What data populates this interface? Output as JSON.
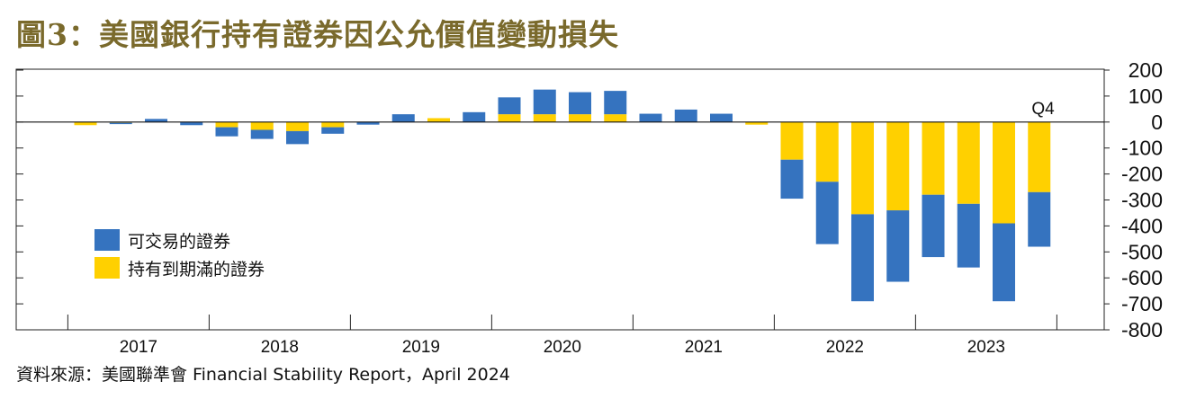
{
  "title": "圖3：美國銀行持有證券因公允價值變動損失",
  "source": "資料來源：美國聯準會 Financial Stability Report，April 2024",
  "colors": {
    "afs": "#3573bf",
    "htm": "#ffd000",
    "title": "#7a6a2c"
  },
  "chart_data": {
    "type": "bar",
    "stacked": true,
    "annotation": "Q4",
    "ylim": [
      -800,
      200
    ],
    "yticks": [
      200,
      100,
      0,
      -100,
      -200,
      -300,
      -400,
      -500,
      -600,
      -700,
      -800
    ],
    "ytick_labels": [
      "200",
      "100",
      "0",
      "-100",
      "-200",
      "-300",
      "-400",
      "-500",
      "-600",
      "-700",
      "-800"
    ],
    "year_labels": [
      "2017",
      "2018",
      "2019",
      "2020",
      "2021",
      "2022",
      "2023"
    ],
    "legend_position": "left-middle",
    "x": [
      "2017Q1",
      "2017Q2",
      "2017Q3",
      "2017Q4",
      "2018Q1",
      "2018Q2",
      "2018Q3",
      "2018Q4",
      "2019Q1",
      "2019Q2",
      "2019Q3",
      "2019Q4",
      "2020Q1",
      "2020Q2",
      "2020Q3",
      "2020Q4",
      "2021Q1",
      "2021Q2",
      "2021Q3",
      "2021Q4",
      "2022Q1",
      "2022Q2",
      "2022Q3",
      "2022Q4",
      "2023Q1",
      "2023Q2",
      "2023Q3",
      "2023Q4"
    ],
    "series": [
      {
        "name": "可交易的證券",
        "values": [
          0,
          -5,
          12,
          -12,
          -35,
          -35,
          -50,
          -25,
          -10,
          30,
          0,
          38,
          65,
          95,
          85,
          90,
          32,
          48,
          32,
          0,
          -150,
          -240,
          -335,
          -275,
          -240,
          -245,
          -300,
          -210
        ]
      },
      {
        "name": "持有到期滿的證券",
        "values": [
          -12,
          -3,
          0,
          0,
          -20,
          -30,
          -35,
          -20,
          0,
          0,
          15,
          0,
          30,
          30,
          30,
          30,
          0,
          0,
          0,
          -10,
          -145,
          -230,
          -355,
          -340,
          -280,
          -315,
          -390,
          -270
        ]
      }
    ]
  }
}
